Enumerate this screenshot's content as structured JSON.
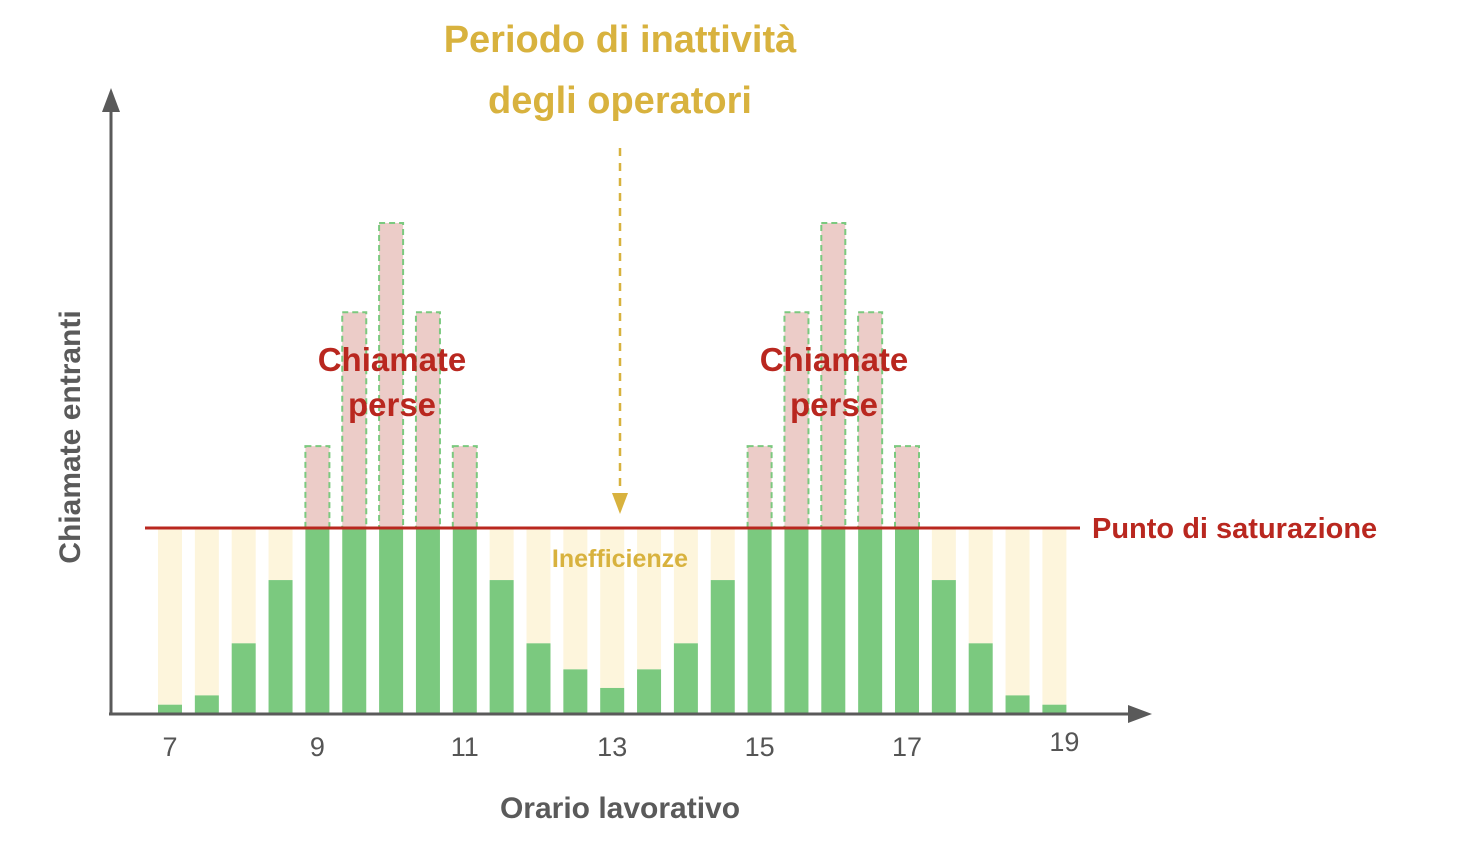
{
  "chart_data": {
    "type": "bar",
    "title_lines": [
      "Periodo di inattività",
      "degli operatori"
    ],
    "xlabel": "Orario lavorativo",
    "ylabel": "Chiamate entranti",
    "x_ticks": [
      "7",
      "9",
      "11",
      "13",
      "15",
      "17",
      "19"
    ],
    "ylim": [
      0,
      10
    ],
    "saturation_level": 5,
    "saturation_label": "Punto di saturazione",
    "inefficiency_label": "Inefficienze",
    "lost_calls_label_lines": [
      "Chiamate",
      "perse"
    ],
    "slots": [
      {
        "hour": 7,
        "demand": 0.25
      },
      {
        "hour": 7.5,
        "demand": 0.5
      },
      {
        "hour": 8,
        "demand": 1.9
      },
      {
        "hour": 8.5,
        "demand": 3.6
      },
      {
        "hour": 9,
        "demand": 7.2
      },
      {
        "hour": 9.5,
        "demand": 10.8
      },
      {
        "hour": 10,
        "demand": 13.2
      },
      {
        "hour": 10.5,
        "demand": 10.8
      },
      {
        "hour": 11,
        "demand": 7.2
      },
      {
        "hour": 11.5,
        "demand": 3.6
      },
      {
        "hour": 12,
        "demand": 1.9
      },
      {
        "hour": 12.5,
        "demand": 1.2
      },
      {
        "hour": 13,
        "demand": 0.7
      },
      {
        "hour": 13.5,
        "demand": 1.2
      },
      {
        "hour": 14,
        "demand": 1.9
      },
      {
        "hour": 14.5,
        "demand": 3.6
      },
      {
        "hour": 15,
        "demand": 7.2
      },
      {
        "hour": 15.5,
        "demand": 10.8
      },
      {
        "hour": 16,
        "demand": 13.2
      },
      {
        "hour": 16.5,
        "demand": 10.8
      },
      {
        "hour": 17,
        "demand": 7.2
      },
      {
        "hour": 17.5,
        "demand": 3.6
      },
      {
        "hour": 18,
        "demand": 1.9
      },
      {
        "hour": 18.5,
        "demand": 0.5
      },
      {
        "hour": 19,
        "demand": 0.25
      }
    ],
    "colors": {
      "handled": "#7bc97f",
      "lost": "#ecccc8",
      "lost_border": "#7bc97f",
      "idle": "#fdf5dc",
      "saturation_line": "#b9271f",
      "axis": "#5a5a5a",
      "arrow": "#d8b23e"
    }
  }
}
